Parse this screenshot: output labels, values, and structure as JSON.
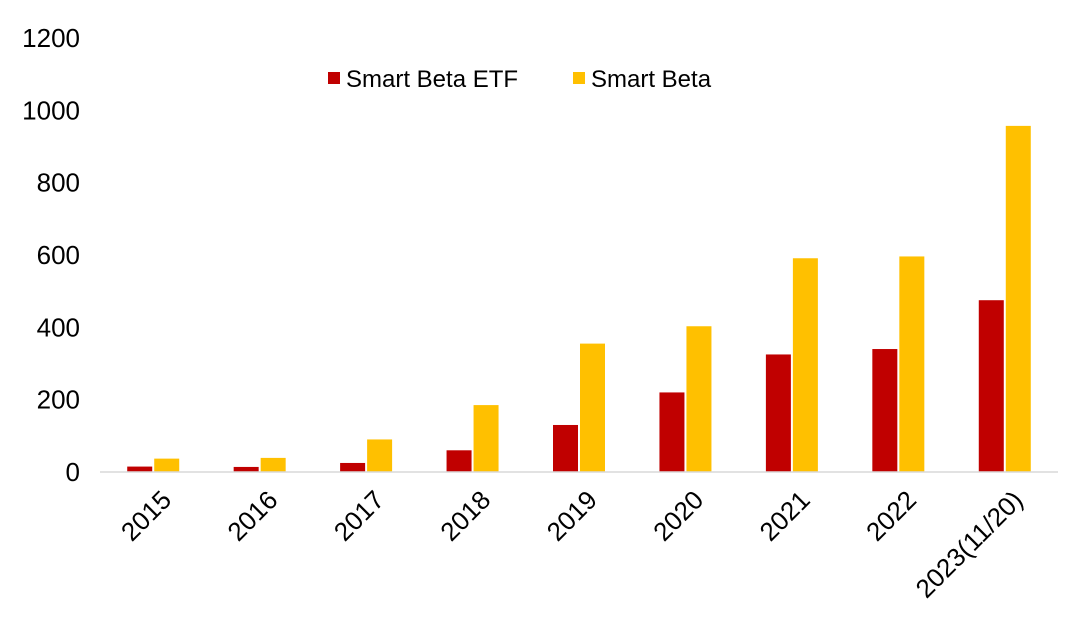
{
  "chart_data": {
    "type": "bar",
    "title": "",
    "xlabel": "",
    "ylabel": "",
    "categories": [
      "2015",
      "2016",
      "2017",
      "2018",
      "2019",
      "2020",
      "2021",
      "2022",
      "2023(11/20)"
    ],
    "series": [
      {
        "name": "Smart Beta ETF",
        "color": "#C00000",
        "values": [
          15,
          14,
          25,
          60,
          130,
          220,
          325,
          340,
          475
        ]
      },
      {
        "name": "Smart Beta",
        "color": "#FFC000",
        "values": [
          37,
          39,
          90,
          185,
          355,
          403,
          591,
          596,
          957
        ]
      }
    ],
    "ylim": [
      0,
      1200
    ],
    "yticks": [
      0,
      200,
      400,
      600,
      800,
      1000,
      1200
    ],
    "grid": false,
    "legend_position": "top-center"
  }
}
